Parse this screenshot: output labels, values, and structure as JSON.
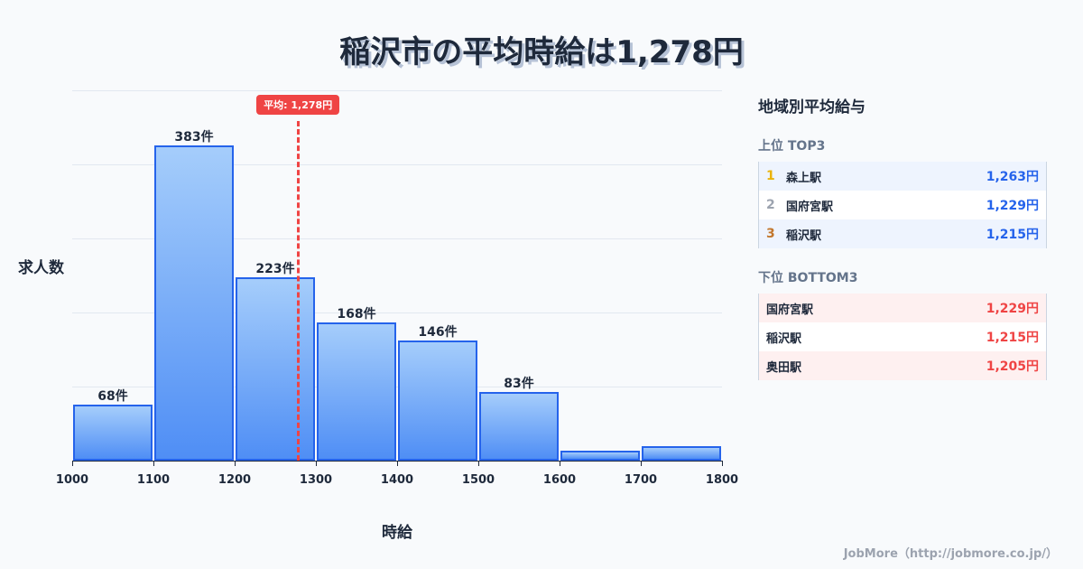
{
  "title": "稲沢市の平均時給は1,278円",
  "chart_data": {
    "type": "bar",
    "title": "稲沢市の平均時給は1,278円",
    "xlabel": "時給",
    "ylabel": "求人数",
    "categories": [
      "1000-1100",
      "1100-1200",
      "1200-1300",
      "1300-1400",
      "1400-1500",
      "1500-1600",
      "1600-1700",
      "1700-1800"
    ],
    "x_ticks": [
      "1000",
      "1100",
      "1200",
      "1300",
      "1400",
      "1500",
      "1600",
      "1700",
      "1800"
    ],
    "values": [
      68,
      383,
      223,
      168,
      146,
      83,
      12,
      18
    ],
    "value_labels": [
      "68件",
      "383件",
      "223件",
      "168件",
      "146件",
      "83件",
      "",
      ""
    ],
    "ylim": [
      0,
      450
    ],
    "grid": true,
    "mean": {
      "value": 1278,
      "label": "平均: 1,278円",
      "color": "#ef4444"
    },
    "bar_color": "#4f8ef5",
    "bar_border": "#2563eb"
  },
  "panel": {
    "title": "地域別平均給与",
    "top": {
      "heading": "上位 TOP3",
      "items": [
        {
          "rank": "1",
          "name": "森上駅",
          "value": "1,263円",
          "rank_color": "#eab308"
        },
        {
          "rank": "2",
          "name": "国府宮駅",
          "value": "1,229円",
          "rank_color": "#9ca3af"
        },
        {
          "rank": "3",
          "name": "稲沢駅",
          "value": "1,215円",
          "rank_color": "#c2772d"
        }
      ]
    },
    "bottom": {
      "heading": "下位 BOTTOM3",
      "items": [
        {
          "name": "国府宮駅",
          "value": "1,229円"
        },
        {
          "name": "稲沢駅",
          "value": "1,215円"
        },
        {
          "name": "奥田駅",
          "value": "1,205円"
        }
      ]
    }
  },
  "footer": "JobMore（http://jobmore.co.jp/）"
}
